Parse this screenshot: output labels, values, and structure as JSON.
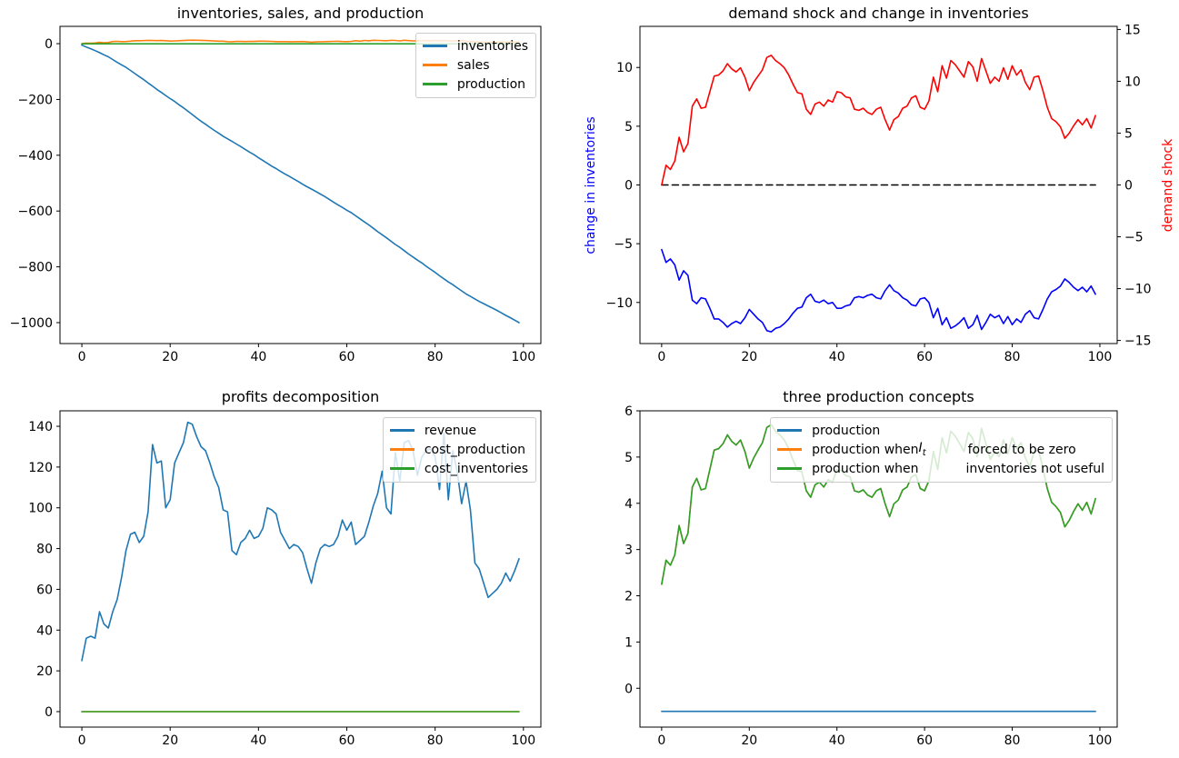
{
  "chart_data": [
    {
      "id": "top_left",
      "type": "line",
      "title": "inventories, sales, and production",
      "xlim": [
        -4.95,
        103.95
      ],
      "ylim": [
        -1075,
        62
      ],
      "xticks": [
        0,
        20,
        40,
        60,
        80,
        100
      ],
      "yticks": [
        0,
        -200,
        -400,
        -600,
        -800,
        -1000
      ],
      "grid": false,
      "legend": {
        "position": "upper-right",
        "entries": [
          {
            "label": "inventories",
            "color": "#1f77b4"
          },
          {
            "label": "sales",
            "color": "#ff7f0e"
          },
          {
            "label": "production",
            "color": "#2ca02c"
          }
        ]
      },
      "series": [
        {
          "name": "inventories",
          "color": "#1f77b4",
          "values": [
            -5,
            -12,
            -18,
            -25,
            -32,
            -40,
            -47,
            -57,
            -67,
            -76,
            -85,
            -96,
            -107,
            -118,
            -129,
            -141,
            -152,
            -164,
            -175,
            -186,
            -197,
            -207,
            -219,
            -230,
            -242,
            -254,
            -266,
            -278,
            -289,
            -300,
            -311,
            -321,
            -332,
            -341,
            -350,
            -360,
            -369,
            -379,
            -389,
            -398,
            -409,
            -419,
            -429,
            -439,
            -448,
            -458,
            -467,
            -476,
            -485,
            -494,
            -504,
            -513,
            -521,
            -530,
            -539,
            -548,
            -558,
            -568,
            -578,
            -587,
            -597,
            -606,
            -617,
            -628,
            -639,
            -650,
            -662,
            -674,
            -685,
            -696,
            -708,
            -720,
            -730,
            -742,
            -754,
            -765,
            -776,
            -786,
            -798,
            -809,
            -820,
            -832,
            -843,
            -854,
            -864,
            -875,
            -886,
            -897,
            -906,
            -915,
            -924,
            -932,
            -940,
            -948,
            -956,
            -965,
            -974,
            -982,
            -991,
            -1000
          ]
        },
        {
          "name": "sales",
          "color": "#ff7f0e",
          "values": [
            0,
            1.9,
            1.5,
            2.3,
            4.6,
            3.2,
            4,
            7.6,
            8.3,
            7.4,
            7.5,
            9,
            10.5,
            10.6,
            11,
            11.7,
            11.2,
            10.9,
            11.3,
            10.4,
            9.1,
            9.9,
            10.5,
            11.1,
            12.3,
            12.5,
            12,
            11.7,
            11.3,
            10.6,
            9.7,
            8.9,
            8.8,
            7.3,
            6.8,
            7.8,
            8,
            7.6,
            8.2,
            8,
            9,
            8.9,
            8.5,
            8.4,
            7.3,
            7.2,
            7.4,
            7,
            6.8,
            7.3,
            7.5,
            6.3,
            5.3,
            6.3,
            6.6,
            7.4,
            7.6,
            8.4,
            8.6,
            7.5,
            7.3,
            8.1,
            10.4,
            9,
            11.5,
            10.3,
            12,
            11.6,
            11,
            10.4,
            11.9,
            11.4,
            10,
            12.2,
            11,
            9.8,
            10.4,
            10,
            11.3,
            10.2,
            11.5,
            10.6,
            11.1,
            9.9,
            9.2,
            10.4,
            10.5,
            9.1,
            7.5,
            6.4,
            6.1,
            5.6,
            4.5,
            5,
            5.7,
            6.3,
            5.8,
            6.4,
            5.5,
            6.7
          ]
        },
        {
          "name": "production",
          "color": "#2ca02c",
          "constant": -0.5,
          "length": 100
        }
      ]
    },
    {
      "id": "top_right",
      "type": "line",
      "title": "demand shock and change in inventories",
      "ylabel_left": {
        "text": "change in inventories",
        "color": "#0000ff"
      },
      "ylabel_right": {
        "text": "demand shock",
        "color": "#ff0000"
      },
      "xlim": [
        -4.95,
        103.95
      ],
      "ylim": [
        -13.5,
        13.5
      ],
      "ylim_right": [
        -15.3,
        15.3
      ],
      "xticks": [
        0,
        20,
        40,
        60,
        80,
        100
      ],
      "yticks": [
        10,
        5,
        0,
        -5,
        -10
      ],
      "yticks_right": [
        15,
        10,
        5,
        0,
        -5,
        -10,
        -15
      ],
      "grid": false,
      "series": [
        {
          "name": "zero line",
          "color": "#000000",
          "style": "dashed",
          "axis": "left",
          "constant": 0,
          "length": 100
        },
        {
          "name": "change in inventories",
          "color": "#0000ff",
          "axis": "left",
          "values": [
            -5.5,
            -6.6,
            -6.3,
            -6.8,
            -8.1,
            -7.3,
            -7.7,
            -9.8,
            -10.1,
            -9.6,
            -9.7,
            -10.5,
            -11.4,
            -11.4,
            -11.7,
            -12.1,
            -11.8,
            -11.6,
            -11.8,
            -11.3,
            -10.6,
            -11,
            -11.4,
            -11.7,
            -12.4,
            -12.5,
            -12.2,
            -12.1,
            -11.8,
            -11.4,
            -10.9,
            -10.5,
            -10.4,
            -9.6,
            -9.3,
            -9.9,
            -10,
            -9.8,
            -10.1,
            -10,
            -10.5,
            -10.5,
            -10.3,
            -10.2,
            -9.6,
            -9.5,
            -9.6,
            -9.4,
            -9.3,
            -9.6,
            -9.7,
            -9,
            -8.5,
            -9,
            -9.2,
            -9.6,
            -9.8,
            -10.2,
            -10.3,
            -9.7,
            -9.6,
            -10,
            -11.3,
            -10.5,
            -11.9,
            -11.3,
            -12.2,
            -12,
            -11.7,
            -11.3,
            -12.2,
            -11.9,
            -11.1,
            -12.3,
            -11.7,
            -11,
            -11.3,
            -11.1,
            -11.8,
            -11.2,
            -11.9,
            -11.4,
            -11.7,
            -11,
            -10.7,
            -11.3,
            -11.4,
            -10.6,
            -9.7,
            -9.1,
            -8.9,
            -8.6,
            -8,
            -8.3,
            -8.7,
            -9,
            -8.7,
            -9.1,
            -8.6,
            -9.3
          ]
        },
        {
          "name": "demand shock",
          "color": "#ff0000",
          "axis": "right",
          "values": [
            0,
            1.9,
            1.5,
            2.3,
            4.6,
            3.2,
            4,
            7.6,
            8.3,
            7.4,
            7.5,
            9,
            10.5,
            10.6,
            11,
            11.7,
            11.2,
            10.9,
            11.3,
            10.4,
            9.1,
            9.9,
            10.5,
            11.1,
            12.3,
            12.5,
            12,
            11.7,
            11.3,
            10.6,
            9.7,
            8.9,
            8.8,
            7.3,
            6.8,
            7.8,
            8,
            7.6,
            8.2,
            8,
            9,
            8.9,
            8.5,
            8.4,
            7.3,
            7.2,
            7.4,
            7,
            6.8,
            7.3,
            7.5,
            6.3,
            5.3,
            6.3,
            6.6,
            7.4,
            7.6,
            8.4,
            8.6,
            7.5,
            7.3,
            8.1,
            10.4,
            9,
            11.5,
            10.3,
            12,
            11.6,
            11,
            10.4,
            11.9,
            11.4,
            10,
            12.2,
            11,
            9.8,
            10.4,
            10,
            11.3,
            10.2,
            11.5,
            10.6,
            11.1,
            9.9,
            9.2,
            10.4,
            10.5,
            9.1,
            7.5,
            6.4,
            6.1,
            5.6,
            4.5,
            5,
            5.7,
            6.3,
            5.8,
            6.4,
            5.5,
            6.7
          ]
        }
      ]
    },
    {
      "id": "bottom_left",
      "type": "line",
      "title": "profits decomposition",
      "xlim": [
        -4.95,
        103.95
      ],
      "ylim": [
        -7.6,
        147.6
      ],
      "xticks": [
        0,
        20,
        40,
        60,
        80,
        100
      ],
      "yticks": [
        0,
        20,
        40,
        60,
        80,
        100,
        120,
        140
      ],
      "grid": false,
      "legend": {
        "position": "upper-right",
        "entries": [
          {
            "label": "revenue",
            "color": "#1f77b4"
          },
          {
            "label": "cost_production",
            "color": "#ff7f0e"
          },
          {
            "label": "cost_inventories",
            "color": "#2ca02c"
          }
        ]
      },
      "series": [
        {
          "name": "revenue",
          "color": "#1f77b4",
          "values": [
            25,
            36,
            37,
            36,
            49,
            43,
            41,
            49,
            55,
            66,
            79,
            87,
            88,
            83,
            86,
            98,
            131,
            122,
            123,
            100,
            104,
            122,
            127,
            132,
            142,
            141,
            135,
            130,
            128,
            122,
            115,
            110,
            99,
            98,
            79,
            77,
            83,
            85,
            89,
            85,
            86,
            90,
            100,
            99,
            97,
            88,
            84,
            80,
            82,
            81,
            78,
            70,
            63,
            73,
            80,
            82,
            81,
            82,
            86,
            94,
            89,
            93,
            82,
            84,
            86,
            93,
            101,
            107,
            118,
            100,
            97,
            127,
            113,
            132,
            133,
            128,
            116,
            125,
            128,
            129,
            125,
            109,
            137,
            104,
            128,
            118,
            102,
            113,
            99,
            73,
            70,
            63,
            56,
            58,
            60,
            63,
            68,
            64,
            69,
            75
          ]
        },
        {
          "name": "cost_production",
          "color": "#ff7f0e",
          "constant": 0,
          "length": 100
        },
        {
          "name": "cost_inventories",
          "color": "#2ca02c",
          "constant": 0,
          "length": 100
        }
      ]
    },
    {
      "id": "bottom_right",
      "type": "line",
      "title": "three production concepts",
      "xlim": [
        -4.95,
        103.95
      ],
      "ylim": [
        -0.84,
        6.0
      ],
      "xticks": [
        0,
        20,
        40,
        60,
        80,
        100
      ],
      "yticks": [
        0,
        1,
        2,
        3,
        4,
        5,
        6
      ],
      "grid": false,
      "legend": {
        "position": "upper-right",
        "entries": [
          {
            "label": "production",
            "color": "#1f77b4",
            "parts": [
              {
                "t": "production"
              }
            ]
          },
          {
            "label": "production when I_t forced to be zero",
            "color": "#ff7f0e",
            "parts": [
              {
                "t": "production when "
              },
              {
                "math": "I",
                "sub": "t"
              },
              {
                "gap": 46
              },
              {
                "t": "forced to be zero"
              }
            ]
          },
          {
            "label": "production when inventories not useful",
            "color": "#2ca02c",
            "parts": [
              {
                "t": "production when"
              },
              {
                "gap": 52
              },
              {
                "t": "inventories not useful"
              }
            ]
          }
        ]
      },
      "series": [
        {
          "name": "production",
          "color": "#1f77b4",
          "constant": -0.5,
          "length": 100
        },
        {
          "name": "production when I_t forced to be zero",
          "color": "#ff7f0e",
          "values": [
            2.25,
            2.77,
            2.66,
            2.88,
            3.52,
            3.13,
            3.35,
            4.35,
            4.54,
            4.29,
            4.32,
            4.73,
            5.15,
            5.18,
            5.29,
            5.48,
            5.34,
            5.26,
            5.37,
            5.12,
            4.76,
            4.98,
            5.15,
            5.31,
            5.64,
            5.7,
            5.56,
            5.48,
            5.37,
            5.18,
            4.93,
            4.71,
            4.68,
            4.27,
            4.13,
            4.4,
            4.46,
            4.35,
            4.51,
            4.46,
            4.73,
            4.71,
            4.6,
            4.57,
            4.27,
            4.24,
            4.29,
            4.18,
            4.13,
            4.27,
            4.32,
            3.99,
            3.71,
            3.99,
            4.07,
            4.29,
            4.35,
            4.57,
            4.62,
            4.32,
            4.27,
            4.49,
            5.12,
            4.73,
            5.42,
            5.09,
            5.56,
            5.45,
            5.29,
            5.12,
            5.53,
            5.4,
            5.01,
            5.62,
            5.29,
            4.95,
            5.12,
            5.01,
            5.37,
            5.07,
            5.42,
            5.18,
            5.31,
            4.98,
            4.79,
            5.12,
            5.15,
            4.76,
            4.32,
            4.02,
            3.93,
            3.8,
            3.49,
            3.63,
            3.82,
            3.99,
            3.85,
            4.02,
            3.77,
            4.1
          ]
        },
        {
          "name": "production when inventories not useful",
          "color": "#2ca02c",
          "values": [
            2.25,
            2.77,
            2.66,
            2.88,
            3.52,
            3.13,
            3.35,
            4.35,
            4.54,
            4.29,
            4.32,
            4.73,
            5.15,
            5.18,
            5.29,
            5.48,
            5.34,
            5.26,
            5.37,
            5.12,
            4.76,
            4.98,
            5.15,
            5.31,
            5.64,
            5.7,
            5.56,
            5.48,
            5.37,
            5.18,
            4.93,
            4.71,
            4.68,
            4.27,
            4.13,
            4.4,
            4.46,
            4.35,
            4.51,
            4.46,
            4.73,
            4.71,
            4.6,
            4.57,
            4.27,
            4.24,
            4.29,
            4.18,
            4.13,
            4.27,
            4.32,
            3.99,
            3.71,
            3.99,
            4.07,
            4.29,
            4.35,
            4.57,
            4.62,
            4.32,
            4.27,
            4.49,
            5.12,
            4.73,
            5.42,
            5.09,
            5.56,
            5.45,
            5.29,
            5.12,
            5.53,
            5.4,
            5.01,
            5.62,
            5.29,
            4.95,
            5.12,
            5.01,
            5.37,
            5.07,
            5.42,
            5.18,
            5.31,
            4.98,
            4.79,
            5.12,
            5.15,
            4.76,
            4.32,
            4.02,
            3.93,
            3.8,
            3.49,
            3.63,
            3.82,
            3.99,
            3.85,
            4.02,
            3.77,
            4.1
          ]
        }
      ]
    }
  ]
}
